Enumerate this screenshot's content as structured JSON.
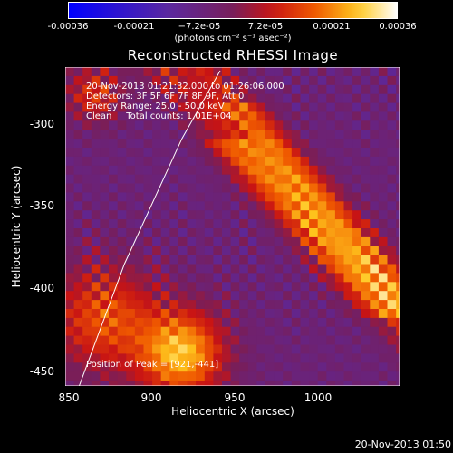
{
  "colorbar": {
    "ticks": [
      "-0.00036",
      "-0.00021",
      "−7.2e-05",
      "7.2e-05",
      "0.00021",
      "0.00036"
    ],
    "unit": "(photons cm⁻² s⁻¹ asec⁻²)"
  },
  "chart_data": {
    "type": "heatmap",
    "title": "Reconstructed RHESSI Image",
    "xlabel": "Heliocentric X (arcsec)",
    "ylabel": "Heliocentric Y (arcsec)",
    "xlim": [
      848,
      1040
    ],
    "ylim": [
      -458,
      -280
    ],
    "xticks": [
      "850",
      "900",
      "950",
      "1000"
    ],
    "yticks": [
      "-300",
      "-350",
      "-400",
      "-450"
    ],
    "colormap": "blue-purple-red-yellow-white",
    "value_range": [
      -0.00036,
      0.00036
    ],
    "limb_line": [
      [
        856,
        -458
      ],
      [
        882,
        -390
      ],
      [
        915,
        -320
      ],
      [
        937,
        -282
      ]
    ],
    "peak": [
      921,
      -441
    ],
    "annotations": {
      "time_range": "20-Nov-2013 01:21:32.000 to 01:26:06.000",
      "detectors": "Detectors: 3F 5F 6F 7F 8F 9F, Att 0",
      "energy": "Energy Range: 25.0 - 50.0 keV",
      "clean": "Clean     Total counts: 1.01E+04",
      "peak_text": "Position of Peak = [921,-441]"
    }
  },
  "timestamp": "20-Nov-2013 01:50"
}
